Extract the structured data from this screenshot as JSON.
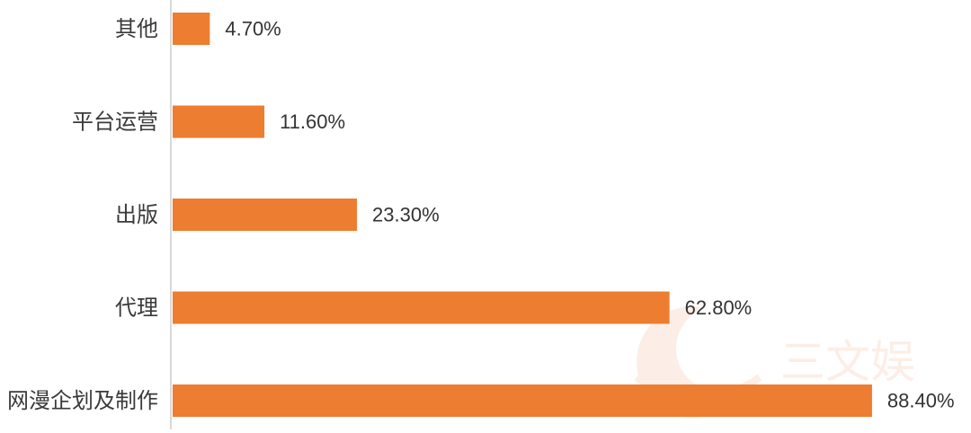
{
  "chart_data": {
    "type": "bar",
    "orientation": "horizontal",
    "categories": [
      "其他",
      "平台运营",
      "出版",
      "代理",
      "网漫企划及制作"
    ],
    "values": [
      4.7,
      11.6,
      23.3,
      62.8,
      88.4
    ],
    "value_labels": [
      "4.70%",
      "11.60%",
      "23.30%",
      "62.80%",
      "88.40%"
    ],
    "xlim": [
      0,
      100
    ],
    "grid": false,
    "legend": "none"
  },
  "colors": {
    "bar": "#ED7D31",
    "axis": "#d9d9d9",
    "category_text": "#3a3a3a",
    "value_text": "#333333"
  },
  "watermark": {
    "text": "三文娱",
    "icon": "sanwenyu-logo-icon"
  }
}
